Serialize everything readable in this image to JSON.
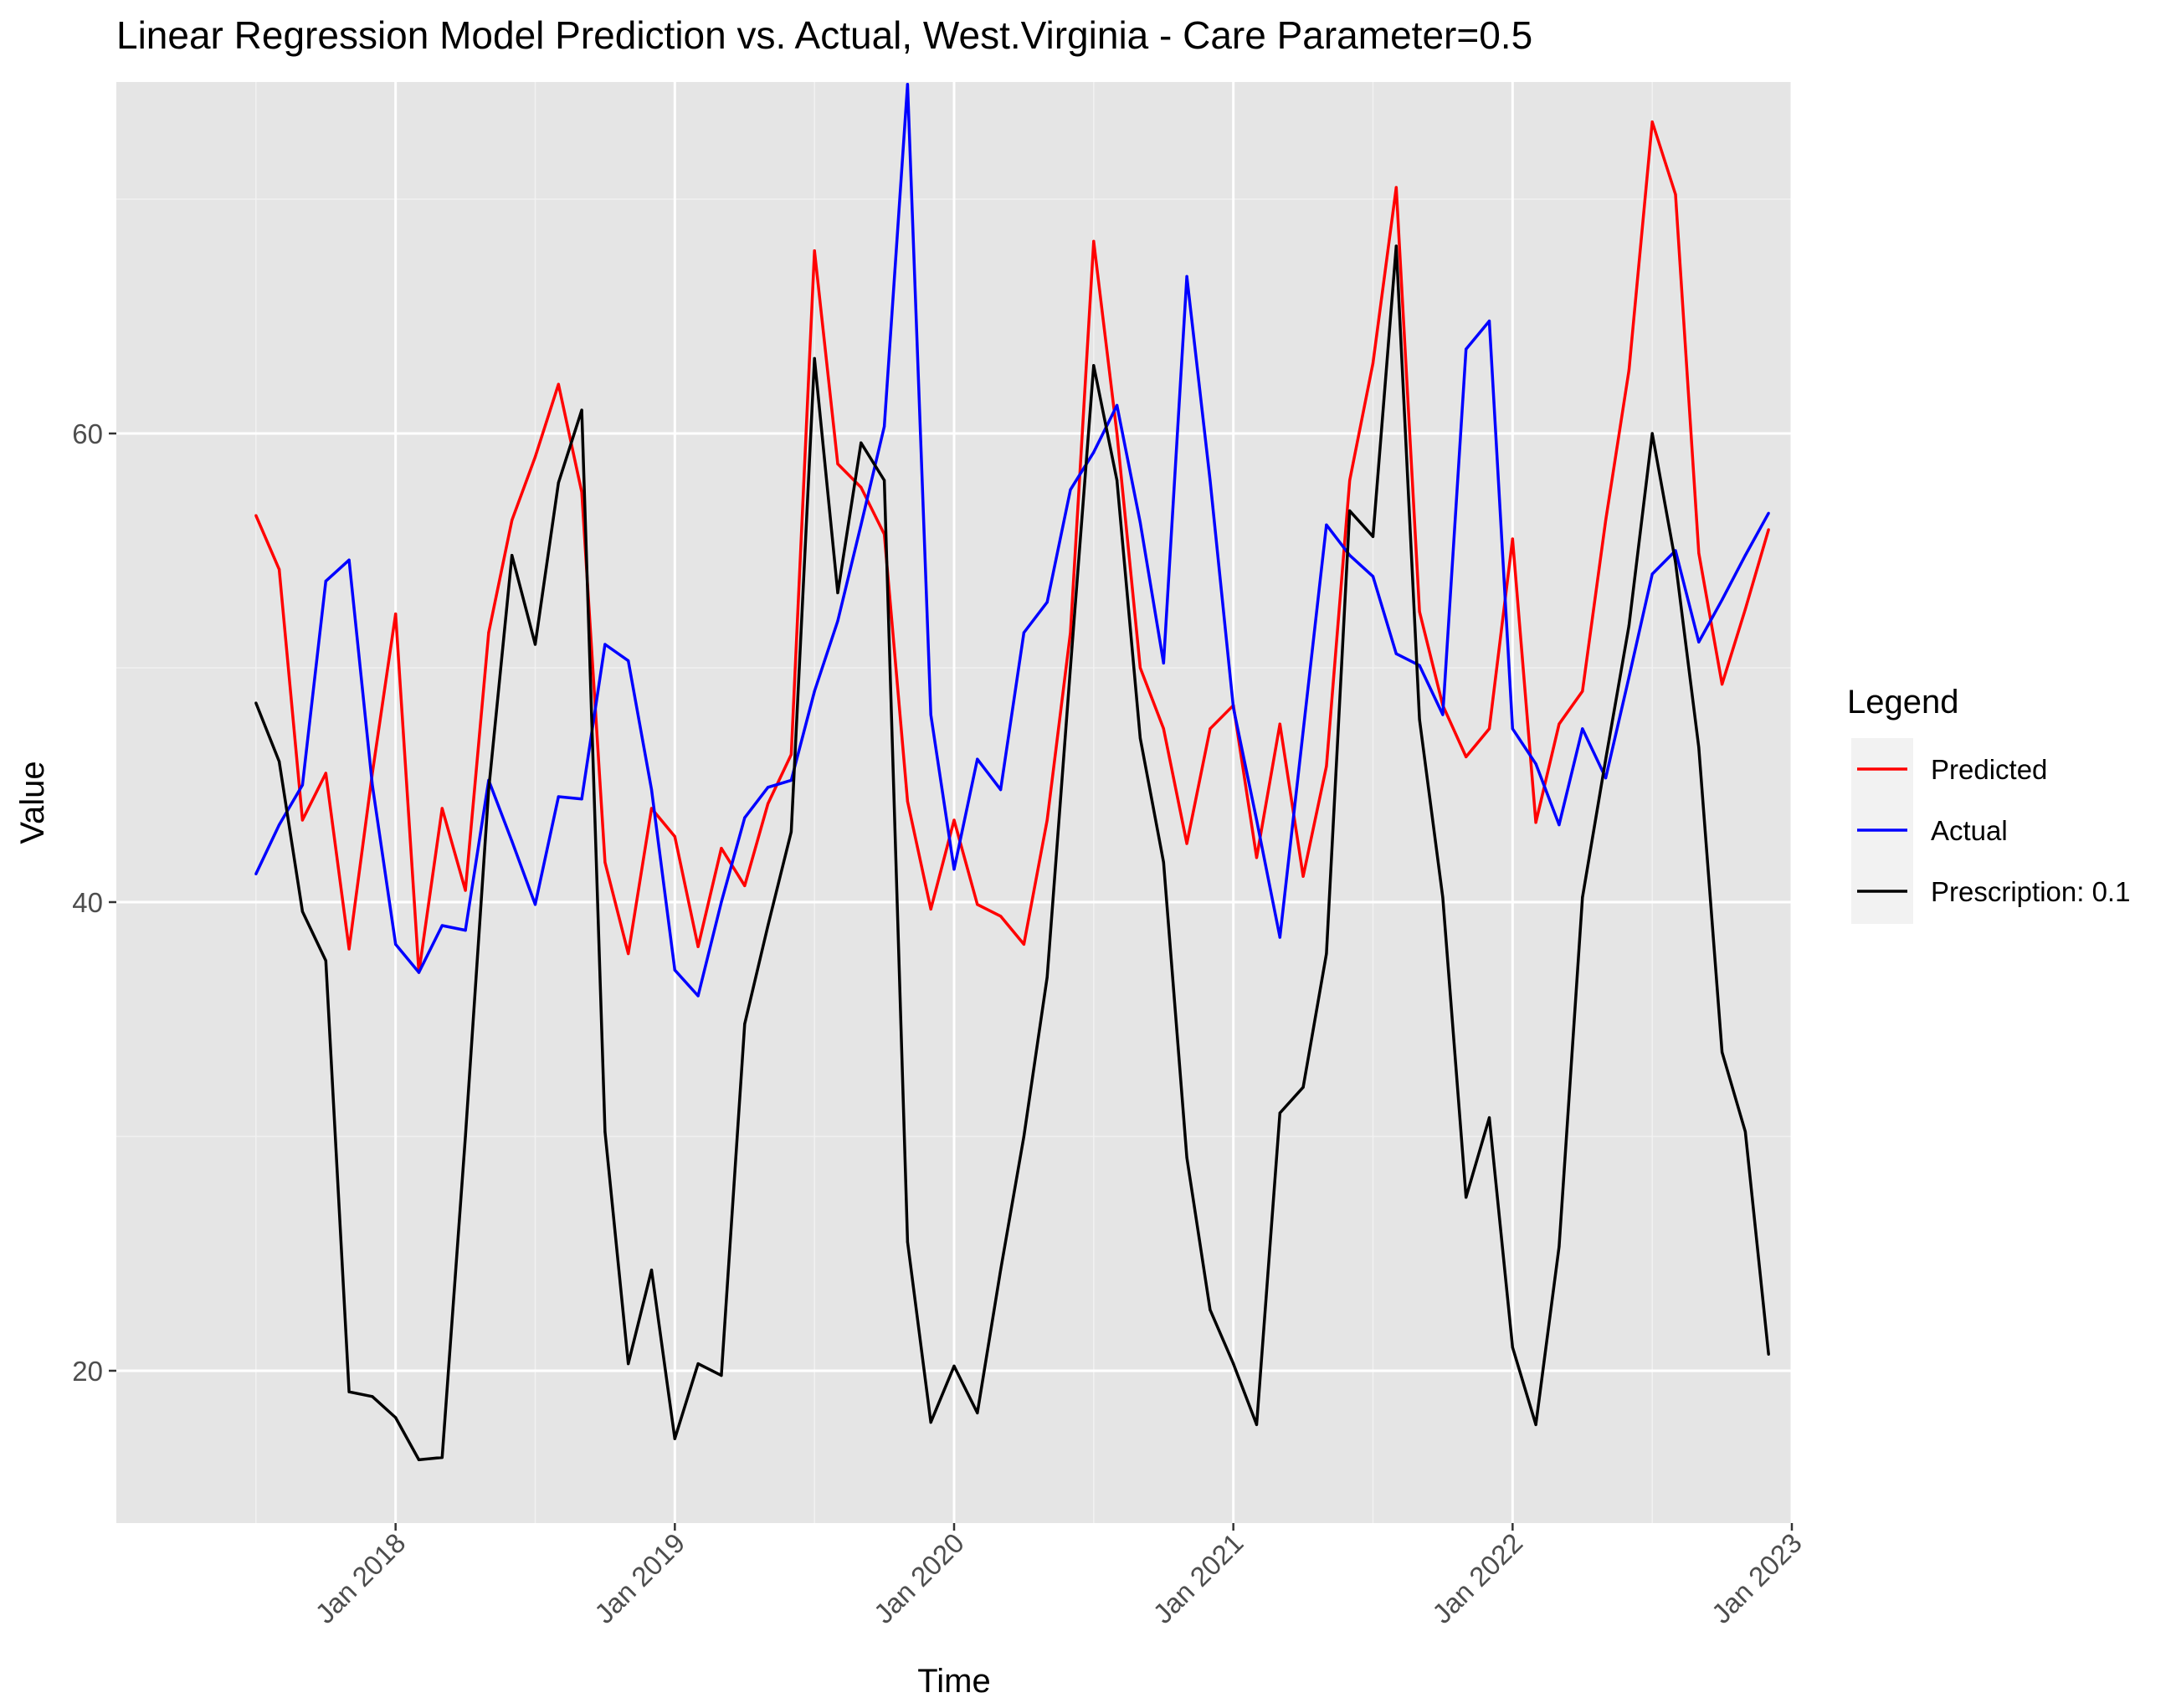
{
  "chart_data": {
    "type": "line",
    "title": "Linear Regression Model Prediction vs. Actual, West.Virginia - Care Parameter=0.5",
    "xlabel": "Time",
    "ylabel": "Value",
    "x_start": "2017-07",
    "x_ticks": [
      "Jan 2018",
      "Jan 2019",
      "Jan 2020",
      "Jan 2021",
      "Jan 2022",
      "Jan 2023"
    ],
    "y_ticks": [
      20,
      40,
      60
    ],
    "xlim": [
      "2017-01",
      "2023-01"
    ],
    "ylim": [
      13.5,
      75
    ],
    "grid": true,
    "legend": {
      "title": "Legend",
      "placement": "right"
    },
    "series": [
      {
        "name": "Predicted",
        "color": "#ff0000",
        "values": [
          56.5,
          54.2,
          43.5,
          45.5,
          38.0,
          45.5,
          52.3,
          37.0,
          44.0,
          40.5,
          51.5,
          56.3,
          59.0,
          62.1,
          57.5,
          41.7,
          37.8,
          44.0,
          42.8,
          38.1,
          42.3,
          40.7,
          44.2,
          46.3,
          67.8,
          58.7,
          57.7,
          55.7,
          44.3,
          39.7,
          43.5,
          39.9,
          39.4,
          38.2,
          43.5,
          51.5,
          68.2,
          60.0,
          50.0,
          47.4,
          42.5,
          47.4,
          48.4,
          41.9,
          47.6,
          41.1,
          45.8,
          58.0,
          63.0,
          70.5,
          52.4,
          48.4,
          46.2,
          47.4,
          55.5,
          43.4,
          47.6,
          49.0,
          56.3,
          62.7,
          73.3,
          70.2,
          54.9,
          49.3,
          52.5,
          55.9
        ]
      },
      {
        "name": "Actual",
        "color": "#0000ff",
        "values": [
          41.2,
          43.3,
          45.0,
          53.7,
          54.6,
          45.0,
          38.2,
          37.0,
          39.0,
          38.8,
          45.2,
          42.6,
          39.9,
          44.5,
          44.4,
          51.0,
          50.3,
          44.8,
          37.1,
          36.0,
          40.0,
          43.6,
          44.9,
          45.2,
          49.0,
          52.0,
          56.1,
          60.3,
          74.9,
          48.0,
          41.4,
          46.1,
          44.8,
          51.5,
          52.8,
          57.6,
          59.2,
          61.2,
          56.2,
          50.2,
          66.7,
          58.0,
          48.3,
          43.5,
          38.5,
          47.3,
          56.1,
          54.8,
          53.9,
          50.6,
          50.1,
          48.0,
          63.6,
          64.8,
          47.4,
          45.9,
          43.3,
          47.4,
          45.3,
          49.6,
          54.0,
          55.0,
          51.1,
          52.9,
          54.8,
          56.6
        ]
      },
      {
        "name": "Prescription: 0.1",
        "color": "#000000",
        "values": [
          48.5,
          46.0,
          39.6,
          37.5,
          19.1,
          18.9,
          18.0,
          16.2,
          16.3,
          30.0,
          44.8,
          54.8,
          51.0,
          57.9,
          61.0,
          30.2,
          20.3,
          24.3,
          17.1,
          20.3,
          19.8,
          34.8,
          39.0,
          43.0,
          63.2,
          53.2,
          59.6,
          58.0,
          25.5,
          17.8,
          20.2,
          18.2,
          24.3,
          30.0,
          36.8,
          50.0,
          62.9,
          58.0,
          47.0,
          41.7,
          29.1,
          22.6,
          20.3,
          17.7,
          31.0,
          32.1,
          37.8,
          56.7,
          55.6,
          68.0,
          47.8,
          40.2,
          27.4,
          30.8,
          21.0,
          17.7,
          25.3,
          40.2,
          46.1,
          51.8,
          60.0,
          54.5,
          46.6,
          33.6,
          30.2,
          20.7
        ]
      }
    ]
  }
}
